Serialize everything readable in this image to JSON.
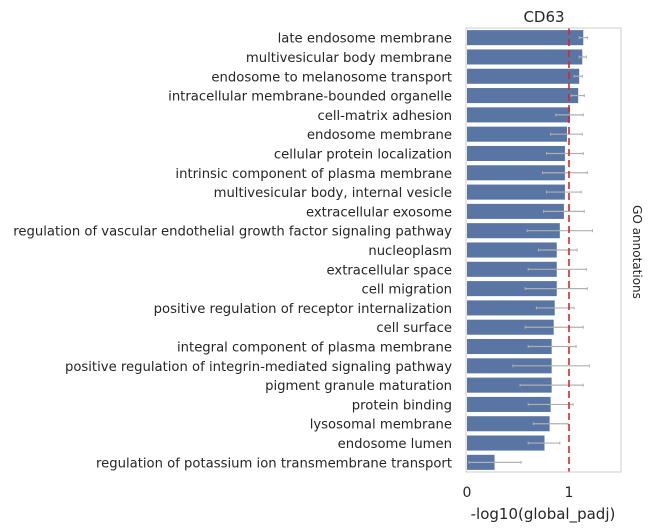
{
  "chart_data": {
    "type": "bar",
    "orientation": "horizontal",
    "title": "CD63",
    "xlabel": "-log10(global_padj)",
    "ylabel": "GO annotations",
    "xlim": [
      0,
      1.5
    ],
    "xticks": [
      0,
      1
    ],
    "xtick_labels": [
      "0",
      "1"
    ],
    "grid": false,
    "reference_line": {
      "x": 1.0,
      "color": "#d62728",
      "style": "dashed"
    },
    "colors": {
      "bar": "#5875a4",
      "error": "#b0b0b0",
      "frame": "#cccccc"
    },
    "categories": [
      "late endosome membrane",
      "multivesicular body membrane",
      "endosome to melanosome transport",
      "intracellular membrane-bounded organelle",
      "cell-matrix adhesion",
      "endosome membrane",
      "cellular protein localization",
      "intrinsic component of plasma membrane",
      "multivesicular body, internal vesicle",
      "extracellular exosome",
      "regulation of vascular endothelial growth factor signaling pathway",
      "nucleoplasm",
      "extracellular space",
      "cell migration",
      "positive regulation of receptor internalization",
      "cell surface",
      "integral component of plasma membrane",
      "positive regulation of integrin-mediated signaling pathway",
      "pigment granule maturation",
      "protein binding",
      "lysosomal membrane",
      "endosome lumen",
      "regulation of potassium ion transmembrane transport"
    ],
    "values": [
      1.14,
      1.13,
      1.1,
      1.09,
      1.01,
      0.98,
      0.96,
      0.96,
      0.96,
      0.95,
      0.91,
      0.88,
      0.88,
      0.88,
      0.86,
      0.85,
      0.83,
      0.83,
      0.83,
      0.82,
      0.81,
      0.76,
      0.27
    ],
    "error_low": [
      1.1,
      1.1,
      1.05,
      1.02,
      0.87,
      0.82,
      0.78,
      0.74,
      0.78,
      0.75,
      0.59,
      0.7,
      0.6,
      0.57,
      0.68,
      0.57,
      0.6,
      0.45,
      0.52,
      0.6,
      0.65,
      0.6,
      0.02
    ],
    "error_high": [
      1.18,
      1.17,
      1.13,
      1.15,
      1.14,
      1.13,
      1.14,
      1.18,
      1.12,
      1.15,
      1.23,
      1.08,
      1.17,
      1.18,
      1.05,
      1.14,
      1.07,
      1.2,
      1.14,
      1.04,
      0.99,
      0.91,
      0.53
    ]
  }
}
